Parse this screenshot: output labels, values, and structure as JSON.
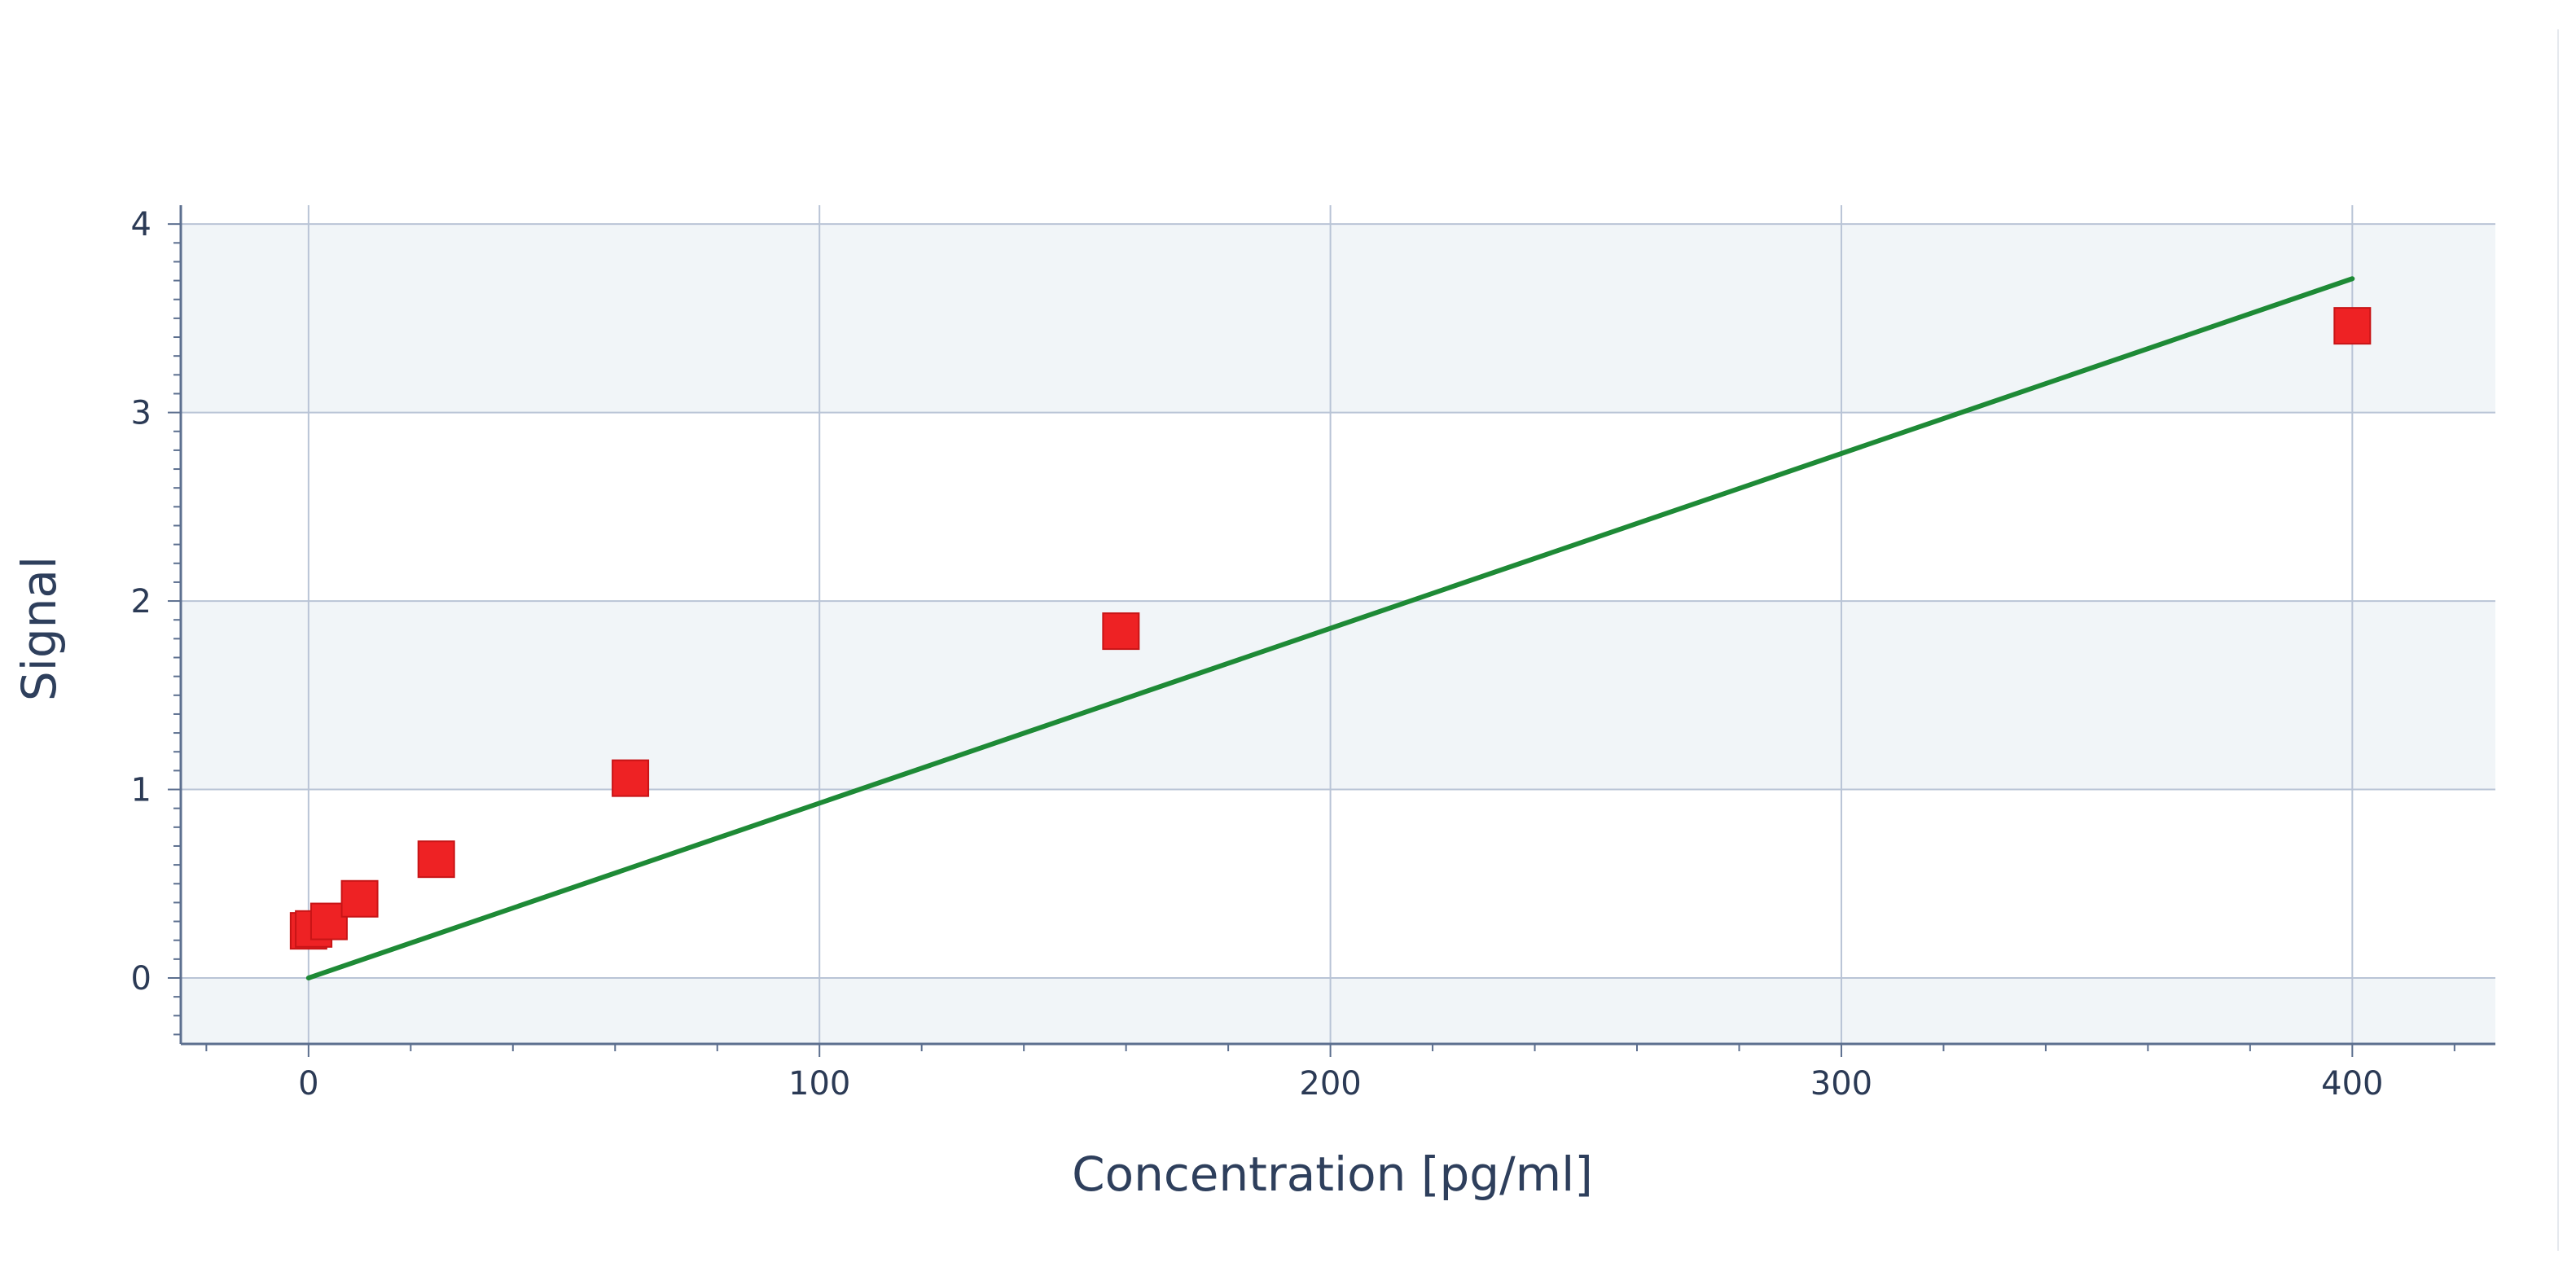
{
  "chart_data": {
    "type": "scatter",
    "title": "",
    "xlabel": "Concentration [pg/ml]",
    "ylabel": "Signal",
    "xlim": [
      -25,
      428
    ],
    "ylim": [
      -0.35,
      4.1
    ],
    "x_ticks": [
      0,
      100,
      200,
      300,
      400
    ],
    "y_ticks": [
      0,
      1,
      2,
      3,
      4
    ],
    "grid": true,
    "legend": "none",
    "series": [
      {
        "type": "scatter",
        "marker": "square",
        "color": "#ee2224",
        "points": [
          {
            "x": 0,
            "y": 0.25
          },
          {
            "x": 1,
            "y": 0.26
          },
          {
            "x": 4,
            "y": 0.3
          },
          {
            "x": 10,
            "y": 0.42
          },
          {
            "x": 25,
            "y": 0.63
          },
          {
            "x": 63,
            "y": 1.06
          },
          {
            "x": 159,
            "y": 1.84
          },
          {
            "x": 400,
            "y": 3.46
          }
        ]
      },
      {
        "type": "line",
        "color": "#1e8a36",
        "points": [
          {
            "x": 0,
            "y": 0.0
          },
          {
            "x": 400,
            "y": 3.71
          }
        ]
      }
    ]
  }
}
